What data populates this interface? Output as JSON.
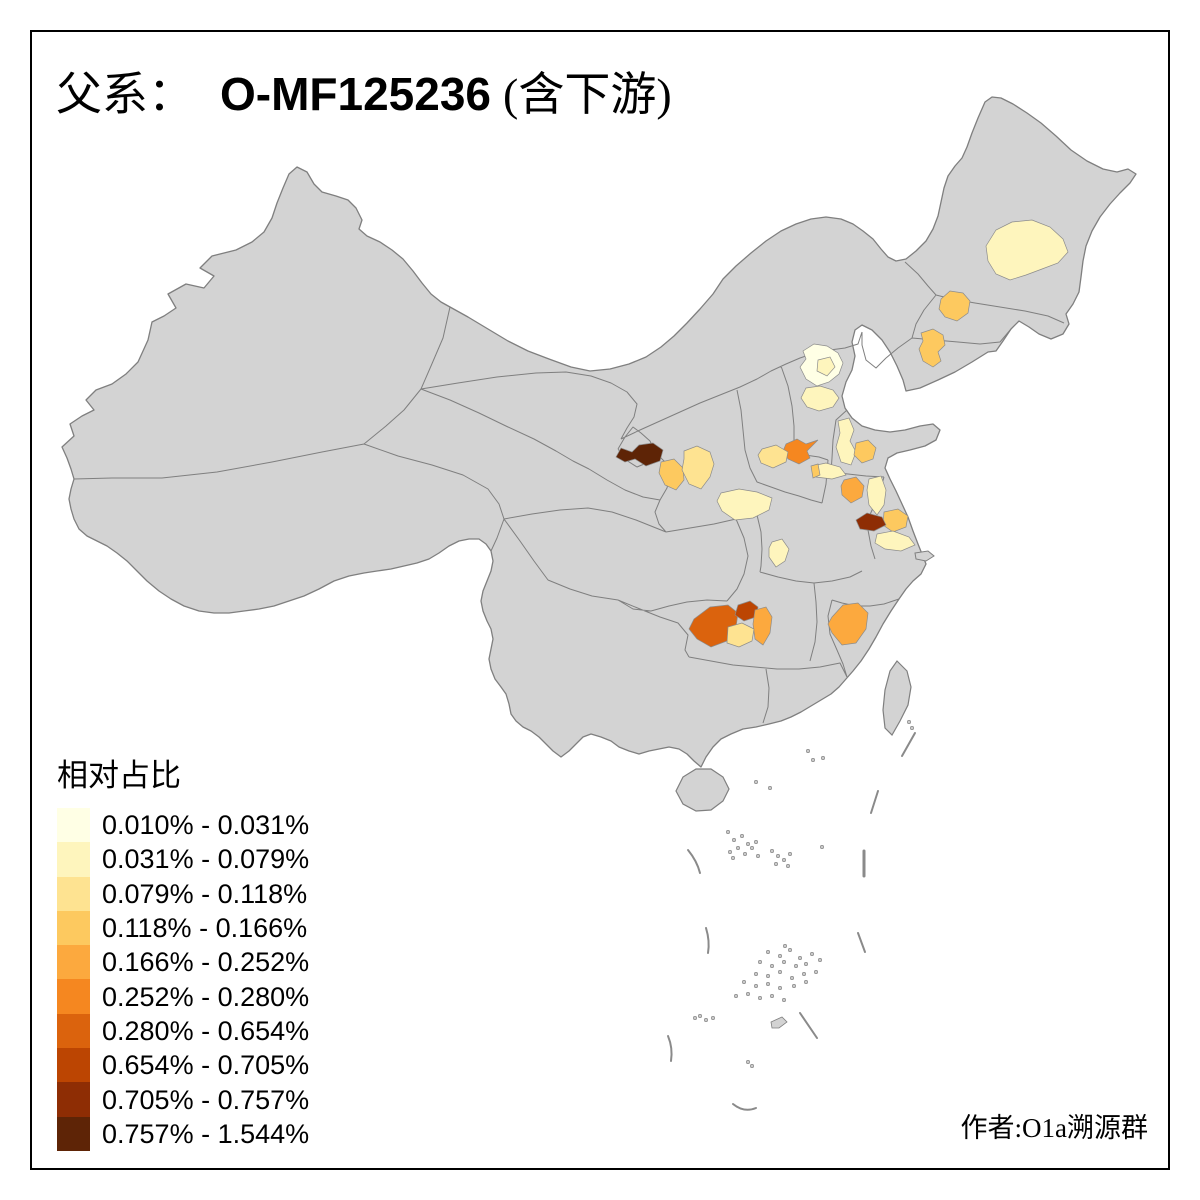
{
  "title": {
    "part1": "父系：",
    "part2": "O-MF125236",
    "part3": "(含下游)"
  },
  "author_credit": "作者:O1a溯源群",
  "legend": {
    "title": "相对占比"
  },
  "chart_data": {
    "type": "heatmap",
    "subtype": "choropleth-map-china-prefectures",
    "title": "父系： O-MF125236 (含下游)",
    "legend_title": "相对占比",
    "legend_position": "bottom-left",
    "author": "作者:O1a溯源群",
    "background": "#FFFFFF",
    "base_region_color": "#D3D3D3",
    "boundary_color": "#7F7F7F",
    "dash_line_color": "#8A8A8A",
    "frame_color": "#000000",
    "classes": [
      {
        "range": "0.010% - 0.031%",
        "color": "#FFFFE5"
      },
      {
        "range": "0.031% - 0.079%",
        "color": "#FEF5BD"
      },
      {
        "range": "0.079% - 0.118%",
        "color": "#FEE391"
      },
      {
        "range": "0.118% - 0.166%",
        "color": "#FDC95F"
      },
      {
        "range": "0.166% - 0.252%",
        "color": "#FCA93E"
      },
      {
        "range": "0.252% - 0.280%",
        "color": "#F58720"
      },
      {
        "range": "0.280% - 0.654%",
        "color": "#DB630D"
      },
      {
        "range": "0.654% - 0.705%",
        "color": "#BC4502"
      },
      {
        "range": "0.705% - 0.757%",
        "color": "#8E2D04"
      },
      {
        "range": "0.757% - 1.544%",
        "color": "#5E2406"
      }
    ],
    "regions": [
      {
        "id": "heilongjiang-harbin",
        "class": 2
      },
      {
        "id": "jilin-changchun",
        "class": 4
      },
      {
        "id": "liaoning-central",
        "class": 4
      },
      {
        "id": "beijing",
        "class": 1
      },
      {
        "id": "beijing-southeast",
        "class": 2
      },
      {
        "id": "hebei-central",
        "class": 2
      },
      {
        "id": "shandong-west",
        "class": 2
      },
      {
        "id": "shandong-central",
        "class": 4
      },
      {
        "id": "shandong-southwest",
        "class": 2
      },
      {
        "id": "shandong-southwest-sliver",
        "class": 4
      },
      {
        "id": "henan-zhengzhou",
        "class": 6
      },
      {
        "id": "henan-east",
        "class": 3
      },
      {
        "id": "gansu-lanzhou",
        "class": 10
      },
      {
        "id": "gansu-dingxi",
        "class": 4
      },
      {
        "id": "gansu-pingliang",
        "class": 3
      },
      {
        "id": "shaanxi-south",
        "class": 2
      },
      {
        "id": "hubei-central",
        "class": 2
      },
      {
        "id": "jiangsu-xuzhou",
        "class": 5
      },
      {
        "id": "jiangsu-north",
        "class": 2
      },
      {
        "id": "jiangsu-central",
        "class": 4
      },
      {
        "id": "jiangsu-nanjing",
        "class": 9
      },
      {
        "id": "jiangsu-south",
        "class": 2
      },
      {
        "id": "fujian-north",
        "class": 5
      },
      {
        "id": "guizhou-north",
        "class": 7
      },
      {
        "id": "chongqing-south",
        "class": 8
      },
      {
        "id": "hunan-northwest",
        "class": 5
      },
      {
        "id": "hunan-west-pale",
        "class": 3
      }
    ]
  }
}
